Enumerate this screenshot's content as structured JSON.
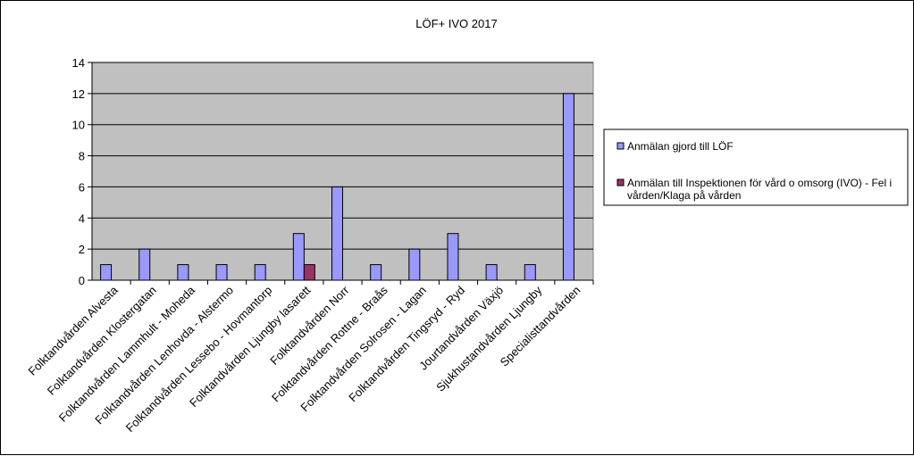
{
  "chart_data": {
    "type": "bar",
    "title": "LÖF+ IVO 2017",
    "xlabel": "",
    "ylabel": "",
    "ylim": [
      0,
      14
    ],
    "yticks": [
      0,
      2,
      4,
      6,
      8,
      10,
      12,
      14
    ],
    "grid": true,
    "legend_position": "right",
    "categories": [
      "Folktandvården Alvesta",
      "Folktandvården Klostergatan",
      "Folktandvården Lammhult - Moheda",
      "Folktandvården Lenhovda - Alstermo",
      "Folktandvården Lessebo - Hovmantorp",
      "Folktandvården Ljungby lasarett",
      "Folktandvården Norr",
      "Folktandvården Rottne - Braås",
      "Folktandvården Solrosen - Lagan",
      "Folktandvården Tingsryd - Ryd",
      "Jourtandvården Växjö",
      "Sjukhustandvården Ljungby",
      "Specialisttandvården"
    ],
    "series": [
      {
        "name": "Anmälan gjord till LÖF",
        "color": "#9999FF",
        "values": [
          1,
          2,
          1,
          1,
          1,
          3,
          6,
          1,
          2,
          3,
          1,
          1,
          12
        ]
      },
      {
        "name": "Anmälan till Inspektionen för vård o omsorg (IVO) - Fel i vården/Klaga på vården",
        "name_lines": [
          "Anmälan till Inspektionen för vård o omsorg (IVO) - Fel i",
          "vården/Klaga på vården"
        ],
        "color": "#993366",
        "values": [
          0,
          0,
          0,
          0,
          0,
          1,
          0,
          0,
          0,
          0,
          0,
          0,
          0
        ]
      }
    ],
    "plot_background": "#C0C0C0"
  }
}
